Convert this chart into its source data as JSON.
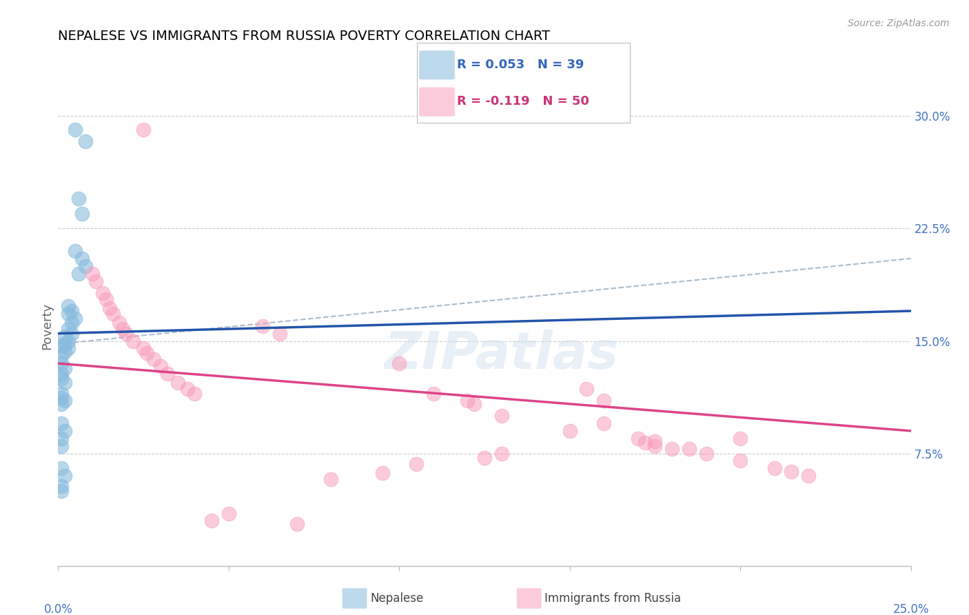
{
  "title": "NEPALESE VS IMMIGRANTS FROM RUSSIA POVERTY CORRELATION CHART",
  "source": "Source: ZipAtlas.com",
  "ylabel": "Poverty",
  "ytick_labels": [
    "7.5%",
    "15.0%",
    "22.5%",
    "30.0%"
  ],
  "ytick_values": [
    0.075,
    0.15,
    0.225,
    0.3
  ],
  "xlim": [
    0.0,
    0.25
  ],
  "ylim": [
    0.0,
    0.32
  ],
  "blue_color": "#88bbdd",
  "pink_color": "#f898b8",
  "blue_line_color": "#2255aa",
  "pink_line_color": "#dd4488",
  "dashed_color": "#aabbcc",
  "blue_line_x": [
    0.0,
    0.25
  ],
  "blue_line_y": [
    0.155,
    0.17
  ],
  "pink_line_x": [
    0.0,
    0.25
  ],
  "pink_line_y": [
    0.135,
    0.09
  ],
  "dash_line_x": [
    0.0,
    0.25
  ],
  "dash_line_y": [
    0.148,
    0.205
  ],
  "blue_points_x": [
    0.005,
    0.008,
    0.006,
    0.007,
    0.005,
    0.007,
    0.008,
    0.006,
    0.003,
    0.004,
    0.003,
    0.005,
    0.004,
    0.003,
    0.004,
    0.002,
    0.003,
    0.002,
    0.001,
    0.003,
    0.002,
    0.001,
    0.001,
    0.002,
    0.001,
    0.001,
    0.002,
    0.001,
    0.001,
    0.002,
    0.001,
    0.001,
    0.002,
    0.001,
    0.001,
    0.001,
    0.002,
    0.001,
    0.001
  ],
  "blue_points_y": [
    0.291,
    0.283,
    0.245,
    0.235,
    0.21,
    0.205,
    0.2,
    0.195,
    0.173,
    0.17,
    0.168,
    0.165,
    0.162,
    0.158,
    0.155,
    0.153,
    0.15,
    0.148,
    0.147,
    0.145,
    0.143,
    0.14,
    0.135,
    0.132,
    0.128,
    0.125,
    0.122,
    0.115,
    0.112,
    0.11,
    0.108,
    0.095,
    0.09,
    0.085,
    0.08,
    0.065,
    0.06,
    0.053,
    0.05
  ],
  "pink_points_x": [
    0.025,
    0.01,
    0.011,
    0.013,
    0.014,
    0.015,
    0.016,
    0.018,
    0.019,
    0.02,
    0.022,
    0.025,
    0.026,
    0.028,
    0.03,
    0.032,
    0.035,
    0.038,
    0.04,
    0.06,
    0.065,
    0.1,
    0.11,
    0.12,
    0.122,
    0.13,
    0.155,
    0.16,
    0.17,
    0.172,
    0.175,
    0.18,
    0.19,
    0.2,
    0.21,
    0.215,
    0.22,
    0.16,
    0.13,
    0.125,
    0.15,
    0.2,
    0.175,
    0.185,
    0.105,
    0.095,
    0.08,
    0.05,
    0.045,
    0.07
  ],
  "pink_points_y": [
    0.291,
    0.195,
    0.19,
    0.182,
    0.178,
    0.172,
    0.168,
    0.162,
    0.158,
    0.155,
    0.15,
    0.145,
    0.142,
    0.138,
    0.133,
    0.128,
    0.122,
    0.118,
    0.115,
    0.16,
    0.155,
    0.135,
    0.115,
    0.11,
    0.108,
    0.1,
    0.118,
    0.095,
    0.085,
    0.082,
    0.08,
    0.078,
    0.075,
    0.07,
    0.065,
    0.063,
    0.06,
    0.11,
    0.075,
    0.072,
    0.09,
    0.085,
    0.083,
    0.078,
    0.068,
    0.062,
    0.058,
    0.035,
    0.03,
    0.028
  ]
}
